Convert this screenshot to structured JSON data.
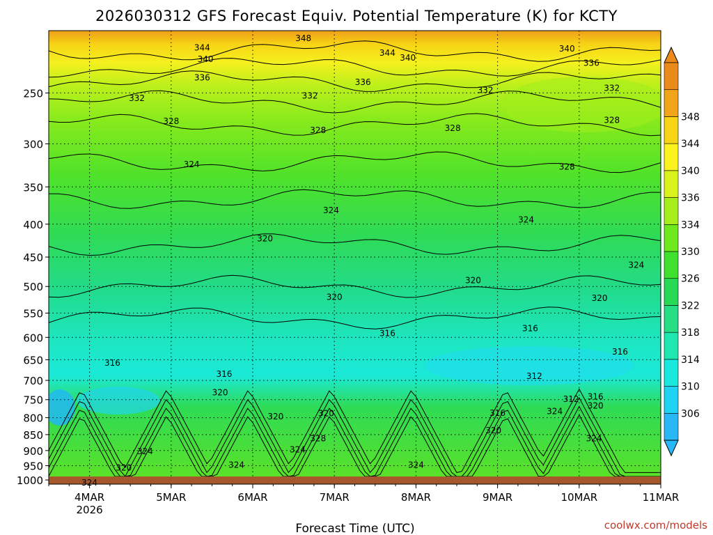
{
  "chart_data": {
    "type": "heatmap",
    "title": "2026030312 GFS Forecast Equiv. Potential Temperature (K) for KCTY",
    "xlabel": "Forecast Time (UTC)",
    "ylabel": "",
    "x_ticks": [
      {
        "t": 0.5,
        "label": "4MAR",
        "sub": "2026"
      },
      {
        "t": 1.5,
        "label": "5MAR",
        "sub": ""
      },
      {
        "t": 2.5,
        "label": "6MAR",
        "sub": ""
      },
      {
        "t": 3.5,
        "label": "7MAR",
        "sub": ""
      },
      {
        "t": 4.5,
        "label": "8MAR",
        "sub": ""
      },
      {
        "t": 5.5,
        "label": "9MAR",
        "sub": ""
      },
      {
        "t": 6.5,
        "label": "10MAR",
        "sub": ""
      },
      {
        "t": 7.5,
        "label": "11MAR",
        "sub": ""
      }
    ],
    "xlim": [
      0,
      7.5
    ],
    "y_ticks": [
      250,
      300,
      350,
      400,
      450,
      500,
      550,
      600,
      650,
      700,
      750,
      800,
      850,
      900,
      950,
      1000
    ],
    "ylim": [
      1015,
      200
    ],
    "y_scale": "log-pressure",
    "grid": true,
    "colorbar": {
      "labels": [
        306,
        310,
        314,
        318,
        322,
        326,
        330,
        334,
        336,
        340,
        344,
        348
      ],
      "colors": [
        "#2ab7f5",
        "#1fd3f2",
        "#18e8de",
        "#1ee8b0",
        "#27de85",
        "#27d955",
        "#3fe12e",
        "#6fe81d",
        "#a6ee1b",
        "#d9f21c",
        "#fbf21e",
        "#f7d415",
        "#f0a51a",
        "#ea8a1a"
      ]
    },
    "contour_labels": [
      {
        "t": 3.12,
        "p": 205,
        "v": "348"
      },
      {
        "t": 1.88,
        "p": 212,
        "v": "344"
      },
      {
        "t": 4.15,
        "p": 216,
        "v": "344"
      },
      {
        "t": 1.92,
        "p": 221,
        "v": "340"
      },
      {
        "t": 4.4,
        "p": 220,
        "v": "340"
      },
      {
        "t": 6.35,
        "p": 213,
        "v": "340"
      },
      {
        "t": 6.65,
        "p": 224,
        "v": "336"
      },
      {
        "t": 1.88,
        "p": 236,
        "v": "336"
      },
      {
        "t": 3.85,
        "p": 240,
        "v": "336"
      },
      {
        "t": 1.08,
        "p": 254,
        "v": "332"
      },
      {
        "t": 3.2,
        "p": 252,
        "v": "332"
      },
      {
        "t": 5.35,
        "p": 247,
        "v": "332"
      },
      {
        "t": 6.9,
        "p": 245,
        "v": "332"
      },
      {
        "t": 1.5,
        "p": 276,
        "v": "328"
      },
      {
        "t": 3.3,
        "p": 285,
        "v": "328"
      },
      {
        "t": 4.95,
        "p": 283,
        "v": "328"
      },
      {
        "t": 6.9,
        "p": 275,
        "v": "328"
      },
      {
        "t": 6.35,
        "p": 325,
        "v": "328"
      },
      {
        "t": 1.75,
        "p": 322,
        "v": "324"
      },
      {
        "t": 3.46,
        "p": 380,
        "v": "324"
      },
      {
        "t": 5.85,
        "p": 393,
        "v": "324"
      },
      {
        "t": 7.2,
        "p": 462,
        "v": "324"
      },
      {
        "t": 2.65,
        "p": 420,
        "v": "320"
      },
      {
        "t": 3.5,
        "p": 518,
        "v": "320"
      },
      {
        "t": 5.2,
        "p": 488,
        "v": "320"
      },
      {
        "t": 6.75,
        "p": 520,
        "v": "320"
      },
      {
        "t": 4.15,
        "p": 590,
        "v": "316"
      },
      {
        "t": 5.9,
        "p": 580,
        "v": "316"
      },
      {
        "t": 7.0,
        "p": 630,
        "v": "316"
      },
      {
        "t": 0.78,
        "p": 656,
        "v": "316"
      },
      {
        "t": 2.15,
        "p": 683,
        "v": "316"
      },
      {
        "t": 2.1,
        "p": 729,
        "v": "320"
      },
      {
        "t": 5.95,
        "p": 688,
        "v": "312"
      },
      {
        "t": 6.7,
        "p": 740,
        "v": "316"
      },
      {
        "t": 6.4,
        "p": 747,
        "v": "312"
      },
      {
        "t": 6.7,
        "p": 765,
        "v": "320"
      },
      {
        "t": 5.5,
        "p": 785,
        "v": "316"
      },
      {
        "t": 6.2,
        "p": 780,
        "v": "324"
      },
      {
        "t": 3.4,
        "p": 786,
        "v": "320"
      },
      {
        "t": 2.78,
        "p": 795,
        "v": "320"
      },
      {
        "t": 5.45,
        "p": 835,
        "v": "320"
      },
      {
        "t": 3.3,
        "p": 860,
        "v": "328"
      },
      {
        "t": 6.68,
        "p": 860,
        "v": "324"
      },
      {
        "t": 1.18,
        "p": 900,
        "v": "324"
      },
      {
        "t": 3.05,
        "p": 895,
        "v": "324"
      },
      {
        "t": 2.3,
        "p": 945,
        "v": "324"
      },
      {
        "t": 4.5,
        "p": 945,
        "v": "324"
      },
      {
        "t": 0.92,
        "p": 955,
        "v": "320"
      },
      {
        "t": 0.5,
        "p": 1008,
        "v": "324"
      }
    ]
  },
  "credit": "coolwx.com/models"
}
